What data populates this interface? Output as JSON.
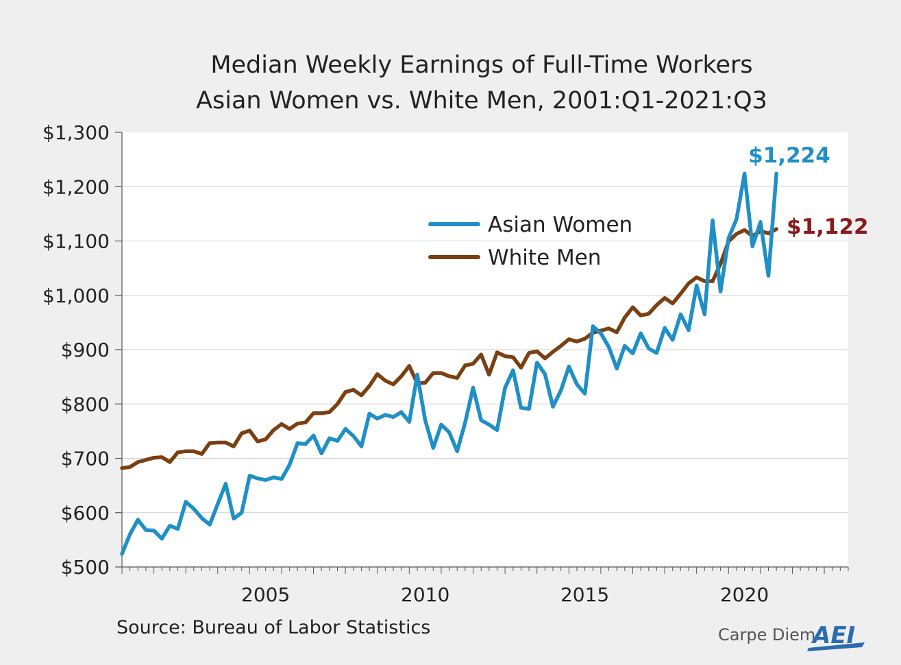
{
  "chart_data": {
    "type": "line",
    "title": "Median Weekly Earnings of Full-Time Workers",
    "subtitle": "Asian Women vs. White Men, 2001:Q1-2021:Q3",
    "xlabel": "",
    "ylabel": "",
    "ylim": [
      500,
      1300
    ],
    "yticks": [
      500,
      600,
      700,
      800,
      900,
      1000,
      1100,
      1200,
      1300
    ],
    "ytick_labels": [
      "$500",
      "$600",
      "$700",
      "$800",
      "$900",
      "$1,000",
      "$1,100",
      "$1,200",
      "$1,300"
    ],
    "xlim": [
      2001.0,
      2023.75
    ],
    "xticks": [
      2005,
      2010,
      2015,
      2020
    ],
    "xtick_labels": [
      "2005",
      "2010",
      "2015",
      "2020"
    ],
    "x_start": 2001.0,
    "x_step": 0.25,
    "grid": "horizontal",
    "legend_position": "upper-center",
    "series": [
      {
        "name": "Asian Women",
        "color": "#1f8fc6",
        "end_label": "$1,224",
        "values": [
          524,
          560,
          587,
          568,
          567,
          552,
          576,
          570,
          620,
          607,
          590,
          578,
          616,
          653,
          589,
          600,
          668,
          663,
          660,
          665,
          662,
          688,
          728,
          726,
          742,
          709,
          737,
          732,
          754,
          741,
          722,
          782,
          773,
          780,
          776,
          785,
          767,
          854,
          770,
          719,
          762,
          748,
          713,
          766,
          830,
          770,
          762,
          752,
          830,
          862,
          793,
          791,
          876,
          855,
          795,
          825,
          869,
          836,
          819,
          943,
          930,
          905,
          865,
          907,
          893,
          930,
          902,
          894,
          940,
          918,
          965,
          936,
          1018,
          965,
          1138,
          1007,
          1105,
          1140,
          1224,
          1090,
          1135,
          1036,
          1224
        ]
      },
      {
        "name": "White Men",
        "color": "#7b4011",
        "end_label": "$1,122",
        "values": [
          682,
          684,
          693,
          697,
          701,
          702,
          693,
          711,
          713,
          713,
          708,
          728,
          729,
          729,
          722,
          746,
          751,
          731,
          735,
          752,
          763,
          754,
          764,
          766,
          783,
          783,
          785,
          800,
          822,
          826,
          816,
          833,
          855,
          843,
          836,
          851,
          870,
          838,
          839,
          857,
          857,
          851,
          848,
          871,
          874,
          891,
          854,
          895,
          888,
          886,
          867,
          894,
          897,
          884,
          896,
          907,
          919,
          915,
          920,
          931,
          935,
          939,
          932,
          959,
          978,
          963,
          966,
          982,
          995,
          985,
          1003,
          1022,
          1033,
          1026,
          1026,
          1058,
          1099,
          1113,
          1120,
          1109,
          1118,
          1114,
          1122
        ]
      }
    ]
  },
  "source": "Source: Bureau of Labor Statistics",
  "brand": {
    "text": "Carpe Diem",
    "logo": "AEI",
    "color": "#2b6cb0"
  }
}
